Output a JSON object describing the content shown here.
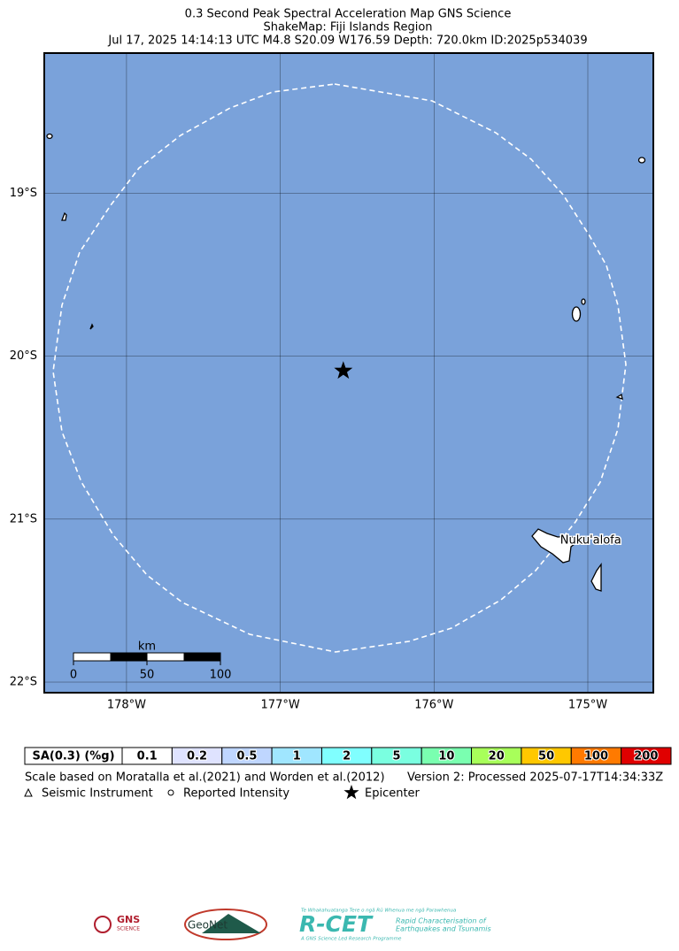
{
  "header": {
    "lines": [
      "0.3 Second Peak Spectral Acceleration Map GNS Science",
      "ShakeMap: Fiji Islands Region",
      "Jul 17, 2025 14:14:13 UTC M4.8 S20.09 W176.59 Depth: 720.0km ID:2025p534039"
    ]
  },
  "map": {
    "lonlim": [
      -178.535,
      -174.574
    ],
    "latlim": [
      -22.065,
      -18.14
    ],
    "water_color": "#7aa2da",
    "lonticks": [
      {
        "value": -178,
        "label": "178°W"
      },
      {
        "value": -177,
        "label": "177°W"
      },
      {
        "value": -176,
        "label": "176°W"
      },
      {
        "value": -175,
        "label": "175°W"
      }
    ],
    "latticks": [
      {
        "value": -19,
        "label": "19°S"
      },
      {
        "value": -20,
        "label": "20°S"
      },
      {
        "value": -21,
        "label": "21°S"
      },
      {
        "value": -22,
        "label": "22°S"
      }
    ],
    "epicenter": {
      "lon": -176.59,
      "lat": -20.09
    },
    "places": [
      {
        "name": "Nuku'alofa",
        "lon": -175.18,
        "lat": -21.13
      }
    ],
    "scale_bar": {
      "unit": "km",
      "labels": [
        0,
        50,
        100
      ]
    }
  },
  "legend": {
    "title": "SA(0.3) (%g)",
    "levels": [
      {
        "value": 0.1,
        "color": "#ffffff"
      },
      {
        "value": 0.2,
        "color": "#dfe3ff"
      },
      {
        "value": 0.5,
        "color": "#bfd6ff"
      },
      {
        "value": 1,
        "color": "#a0e6ff"
      },
      {
        "value": 2,
        "color": "#80ffff"
      },
      {
        "value": 5,
        "color": "#7affe0"
      },
      {
        "value": 10,
        "color": "#7affb0"
      },
      {
        "value": 20,
        "color": "#a8ff5a"
      },
      {
        "value": 50,
        "color": "#ffc800"
      },
      {
        "value": 100,
        "color": "#ff7a00"
      },
      {
        "value": 200,
        "color": "#e00000"
      }
    ]
  },
  "footer": {
    "scale_note": "Scale based on Moratalla et al.(2021) and Worden et al.(2012)",
    "version": "Version 2: Processed 2025-07-17T14:34:33Z",
    "symbols": [
      "Seismic Instrument",
      "Reported Intensity",
      "Epicenter"
    ]
  },
  "logos": {
    "gns": "GNS",
    "gns_sub": "SCIENCE",
    "geonet": "GeoNet",
    "rcet": "R-CET",
    "rcet_top": "Te Whakahuatanga Tere o ngā Rū Whenua me ngā Parawhenua",
    "rcet_line1": "Rapid Characterisation of",
    "rcet_line2": "Earthquakes and Tsunamis",
    "rcet_bottom": "A GNS Science Led Research Programme"
  }
}
